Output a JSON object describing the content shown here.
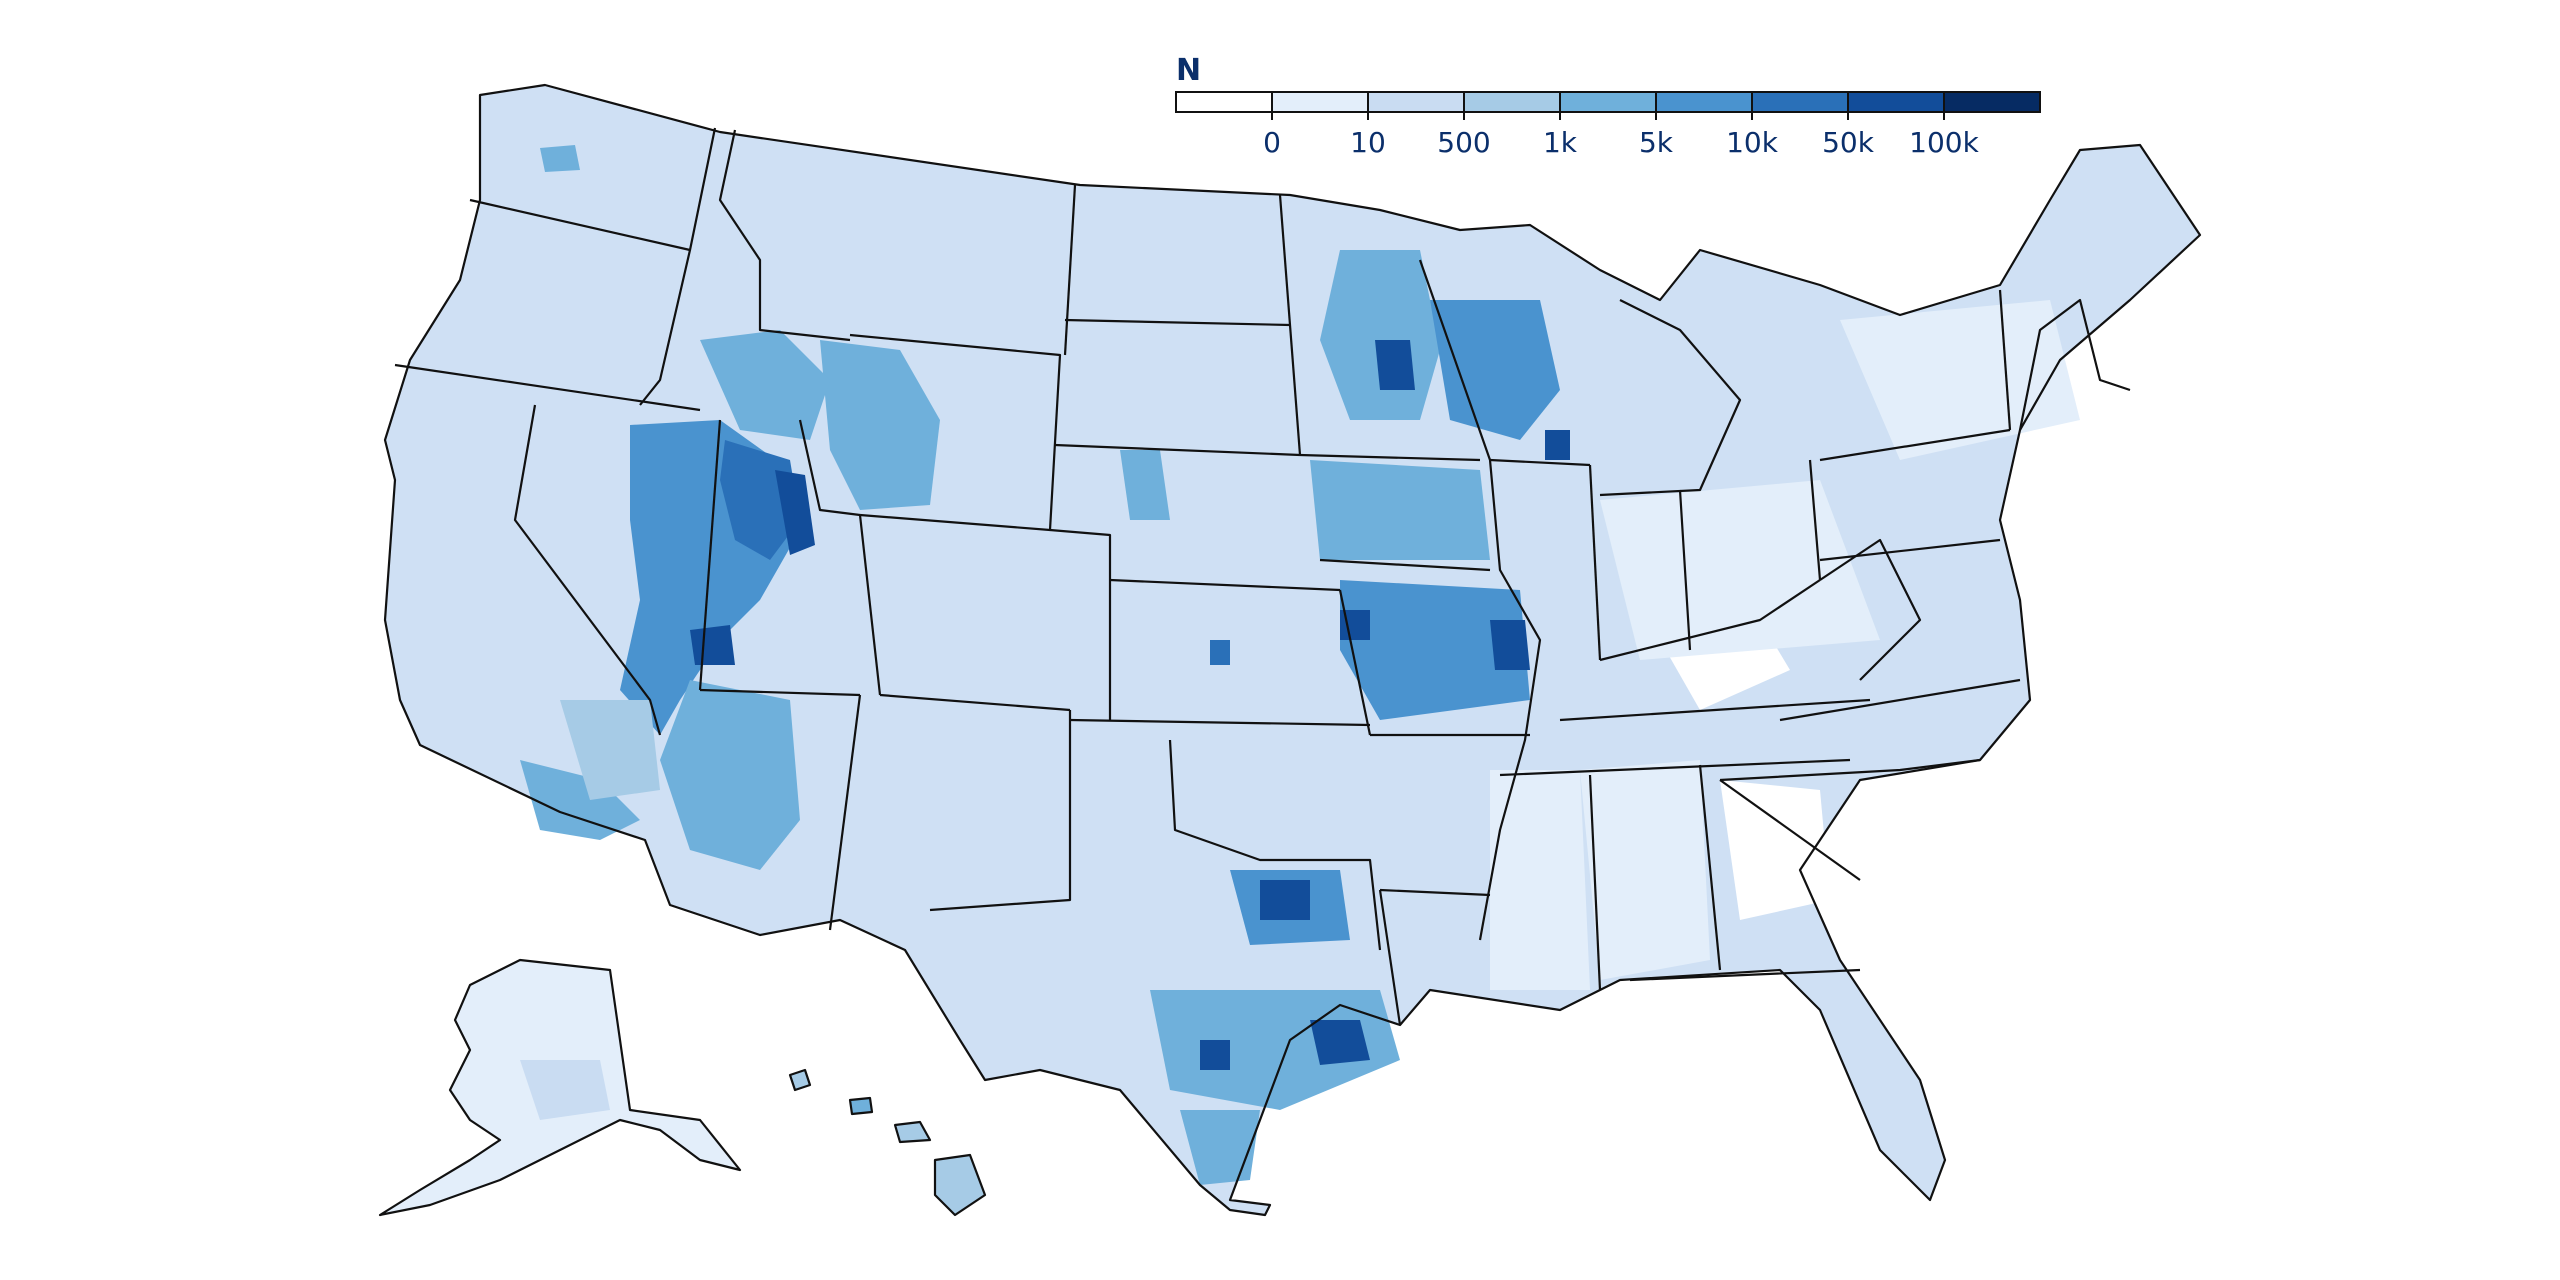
{
  "legend": {
    "title": "N",
    "bins": [
      {
        "label": "",
        "color": "#ffffff"
      },
      {
        "label": "0",
        "color": "#e3eefa"
      },
      {
        "label": "10",
        "color": "#c9dcf2"
      },
      {
        "label": "500",
        "color": "#a6cbe6"
      },
      {
        "label": "1k",
        "color": "#6fb0db"
      },
      {
        "label": "5k",
        "color": "#4a93cf"
      },
      {
        "label": "10k",
        "color": "#2a70b8"
      },
      {
        "label": "50k",
        "color": "#124d9a"
      },
      {
        "label": "100k",
        "color": "#062b63"
      }
    ]
  },
  "colors": {
    "state_outline": "#111111",
    "base_fill": "#cfe0f4"
  }
}
